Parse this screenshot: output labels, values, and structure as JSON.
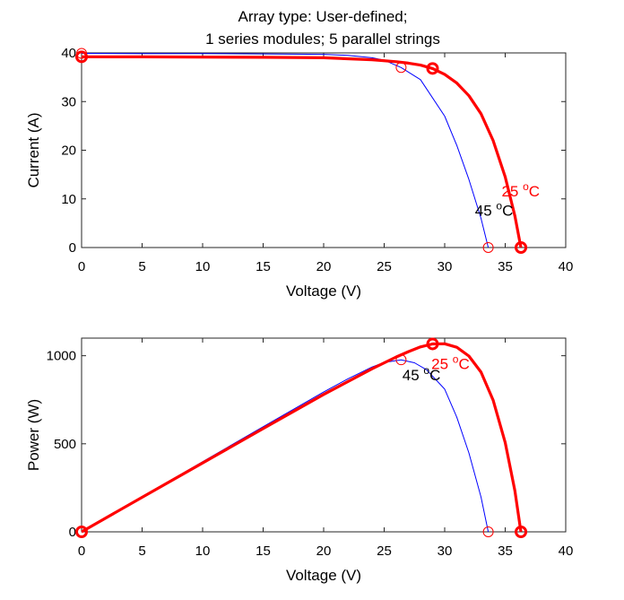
{
  "figure": {
    "title_line1": "Array type: User-defined;",
    "title_line2": "1 series modules; 5 parallel strings"
  },
  "chart_data": [
    {
      "type": "line",
      "xlabel": "Voltage (V)",
      "ylabel": "Current (A)",
      "xlim": [
        0,
        40
      ],
      "ylim": [
        0,
        40
      ],
      "xticks": [
        0,
        5,
        10,
        15,
        20,
        25,
        30,
        35,
        40
      ],
      "yticks": [
        0,
        10,
        20,
        30,
        40
      ],
      "grid": false,
      "series": [
        {
          "temp_label": "45 °C",
          "color": "#0000ff",
          "points": [
            [
              0,
              39.9
            ],
            [
              5,
              39.88
            ],
            [
              10,
              39.85
            ],
            [
              15,
              39.8
            ],
            [
              20,
              39.7
            ],
            [
              22,
              39.5
            ],
            [
              24,
              39.0
            ],
            [
              25,
              38.5
            ],
            [
              26.4,
              37.0
            ],
            [
              28,
              34.5
            ],
            [
              30,
              27.0
            ],
            [
              31,
              21.0
            ],
            [
              32,
              14.0
            ],
            [
              33,
              6.0
            ],
            [
              33.6,
              0
            ]
          ],
          "markers": [
            [
              0,
              39.9
            ],
            [
              26.4,
              37.0
            ],
            [
              33.6,
              0
            ]
          ]
        },
        {
          "temp_label": "25 °C",
          "color": "#ff0000",
          "points": [
            [
              0,
              39.2
            ],
            [
              5,
              39.18
            ],
            [
              10,
              39.15
            ],
            [
              15,
              39.1
            ],
            [
              20,
              39.0
            ],
            [
              24,
              38.6
            ],
            [
              26,
              38.2
            ],
            [
              27,
              37.9
            ],
            [
              28,
              37.5
            ],
            [
              29,
              36.8
            ],
            [
              30,
              35.6
            ],
            [
              31,
              33.8
            ],
            [
              32,
              31.2
            ],
            [
              33,
              27.5
            ],
            [
              34,
              22.0
            ],
            [
              35,
              14.5
            ],
            [
              35.8,
              6.5
            ],
            [
              36.3,
              0
            ]
          ],
          "markers": [
            [
              0,
              39.2
            ],
            [
              29,
              36.8
            ],
            [
              36.3,
              0
            ]
          ]
        }
      ],
      "annotations": [
        {
          "text": "45 °C",
          "x": 32.5,
          "y": 6.5,
          "color": "#000000"
        },
        {
          "text": "25 °C",
          "x": 34.7,
          "y": 10.5,
          "color": "#ff0000"
        }
      ]
    },
    {
      "type": "line",
      "xlabel": "Voltage (V)",
      "ylabel": "Power (W)",
      "xlim": [
        0,
        40
      ],
      "ylim": [
        0,
        1100
      ],
      "xticks": [
        0,
        5,
        10,
        15,
        20,
        25,
        30,
        35,
        40
      ],
      "yticks": [
        0,
        500,
        1000
      ],
      "grid": false,
      "series": [
        {
          "temp_label": "45 °C",
          "color": "#0000ff",
          "points": [
            [
              0,
              0
            ],
            [
              5,
              199
            ],
            [
              10,
              398
            ],
            [
              15,
              597
            ],
            [
              20,
              794
            ],
            [
              22,
              869
            ],
            [
              24,
              936
            ],
            [
              25,
              962
            ],
            [
              26.4,
              977
            ],
            [
              27.5,
              960
            ],
            [
              28.5,
              920
            ],
            [
              30,
              810
            ],
            [
              31,
              651
            ],
            [
              32,
              448
            ],
            [
              33,
              198
            ],
            [
              33.6,
              0
            ]
          ],
          "markers": [
            [
              0,
              0
            ],
            [
              26.4,
              977
            ],
            [
              33.6,
              0
            ]
          ]
        },
        {
          "temp_label": "25 °C",
          "color": "#ff0000",
          "points": [
            [
              0,
              0
            ],
            [
              5,
              196
            ],
            [
              10,
              391
            ],
            [
              15,
              586
            ],
            [
              20,
              780
            ],
            [
              24,
              926
            ],
            [
              26,
              993
            ],
            [
              27,
              1023
            ],
            [
              28,
              1050
            ],
            [
              29,
              1067
            ],
            [
              30,
              1068
            ],
            [
              31,
              1048
            ],
            [
              32,
              998
            ],
            [
              33,
              907
            ],
            [
              34,
              748
            ],
            [
              35,
              507
            ],
            [
              35.8,
              233
            ],
            [
              36.3,
              0
            ]
          ],
          "markers": [
            [
              0,
              0
            ],
            [
              29,
              1067
            ],
            [
              36.3,
              0
            ]
          ]
        }
      ],
      "annotations": [
        {
          "text": "45 °C",
          "x": 26.5,
          "y": 860,
          "color": "#000000"
        },
        {
          "text": "25 °C",
          "x": 28.9,
          "y": 925,
          "color": "#ff0000"
        }
      ]
    }
  ]
}
